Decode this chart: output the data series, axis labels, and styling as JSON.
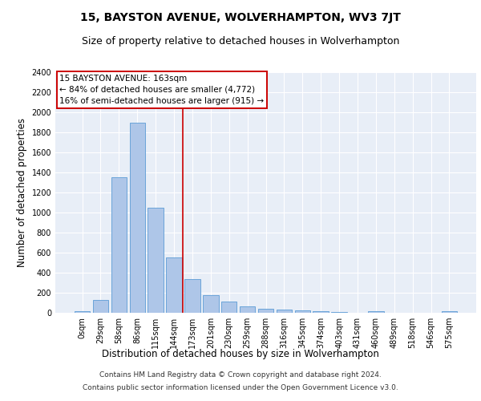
{
  "title": "15, BAYSTON AVENUE, WOLVERHAMPTON, WV3 7JT",
  "subtitle": "Size of property relative to detached houses in Wolverhampton",
  "xlabel": "Distribution of detached houses by size in Wolverhampton",
  "ylabel": "Number of detached properties",
  "bar_labels": [
    "0sqm",
    "29sqm",
    "58sqm",
    "86sqm",
    "115sqm",
    "144sqm",
    "173sqm",
    "201sqm",
    "230sqm",
    "259sqm",
    "288sqm",
    "316sqm",
    "345sqm",
    "374sqm",
    "403sqm",
    "431sqm",
    "460sqm",
    "489sqm",
    "518sqm",
    "546sqm",
    "575sqm"
  ],
  "bar_values": [
    20,
    130,
    1350,
    1900,
    1050,
    550,
    340,
    175,
    115,
    65,
    40,
    30,
    25,
    20,
    10,
    0,
    20,
    0,
    0,
    0,
    15
  ],
  "bar_color": "#aec6e8",
  "bar_edgecolor": "#5b9bd5",
  "background_color": "#e8eef7",
  "grid_color": "#ffffff",
  "vline_x": 5.5,
  "vline_color": "#cc0000",
  "annotation_text": "15 BAYSTON AVENUE: 163sqm\n← 84% of detached houses are smaller (4,772)\n16% of semi-detached houses are larger (915) →",
  "annotation_box_color": "#ffffff",
  "annotation_box_edgecolor": "#cc0000",
  "footer1": "Contains HM Land Registry data © Crown copyright and database right 2024.",
  "footer2": "Contains public sector information licensed under the Open Government Licence v3.0.",
  "ylim": [
    0,
    2400
  ],
  "yticks": [
    0,
    200,
    400,
    600,
    800,
    1000,
    1200,
    1400,
    1600,
    1800,
    2000,
    2200,
    2400
  ],
  "title_fontsize": 10,
  "subtitle_fontsize": 9,
  "axis_label_fontsize": 8.5,
  "tick_fontsize": 7,
  "footer_fontsize": 6.5,
  "annotation_fontsize": 7.5
}
